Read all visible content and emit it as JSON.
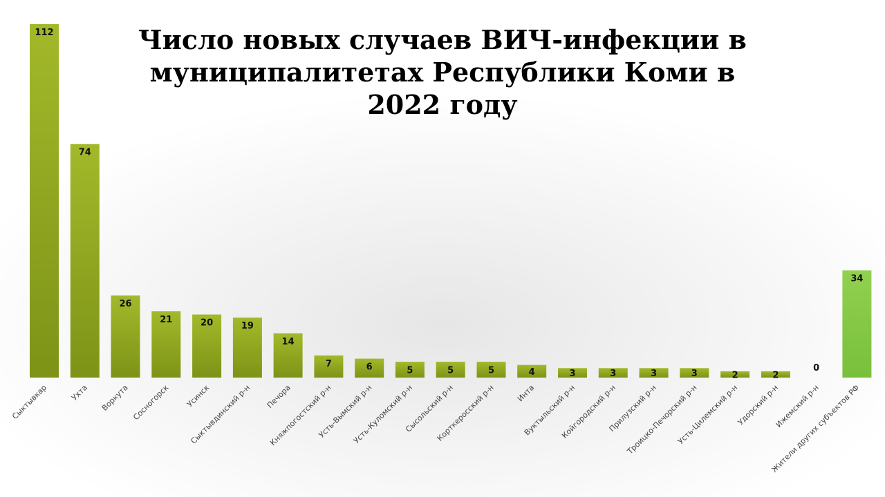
{
  "chart_data": {
    "type": "bar",
    "title": "Число новых случаев ВИЧ-инфекции в муниципалитетах Республики Коми в 2022 году",
    "categories": [
      "Сыктывкар",
      "Ухта",
      "Воркута",
      "Сосногорск",
      "Усинск",
      "Сыктывдинский р-н",
      "Печора",
      "Княжпогостский р-н",
      "Усть-Вымский р-н",
      "Усть-Куломский р-н",
      "Сысольский р-н",
      "Корткеросский р-н",
      "Инта",
      "Вуктыльский р-н",
      "Койгородский р-н",
      "Прилузский р-н",
      "Троицко-Печорский р-н",
      "Усть-Цилемский р-н",
      "Удорский р-н",
      "Ижемский р-н",
      "Жители других субъектов РФ"
    ],
    "values": [
      112,
      74,
      26,
      21,
      20,
      19,
      14,
      7,
      6,
      5,
      5,
      5,
      4,
      3,
      3,
      3,
      3,
      2,
      2,
      0,
      34
    ],
    "ylim": [
      0,
      112
    ],
    "grid": false,
    "legend": "none",
    "colors": {
      "bar_top": "#a3b92a",
      "bar_bottom": "#7d9317",
      "highlight_top": "#92d050",
      "highlight_bottom": "#78c03c"
    },
    "highlight_index": 20
  }
}
